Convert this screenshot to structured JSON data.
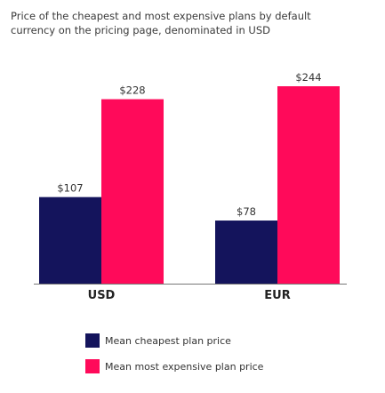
{
  "colors": {
    "cheapest": "#14145c",
    "expensive": "#ff0a5a",
    "baseline": "#777777",
    "text": "#333333"
  },
  "chart_data": {
    "type": "bar",
    "title": "Price of the cheapest and most expensive plans by default currency on the pricing page, denominated in USD",
    "categories": [
      "USD",
      "EUR"
    ],
    "series": [
      {
        "name": "Mean cheapest plan price",
        "values": [
          107,
          78
        ],
        "labels": [
          "$107",
          "$78"
        ],
        "color": "#14145c"
      },
      {
        "name": "Mean most expensive plan price",
        "values": [
          228,
          244
        ],
        "labels": [
          "$228",
          "$244"
        ],
        "color": "#ff0a5a"
      }
    ],
    "xlabel": "",
    "ylabel": "",
    "ylim": [
      0,
      244
    ],
    "grid": false,
    "legend": "bottom"
  }
}
